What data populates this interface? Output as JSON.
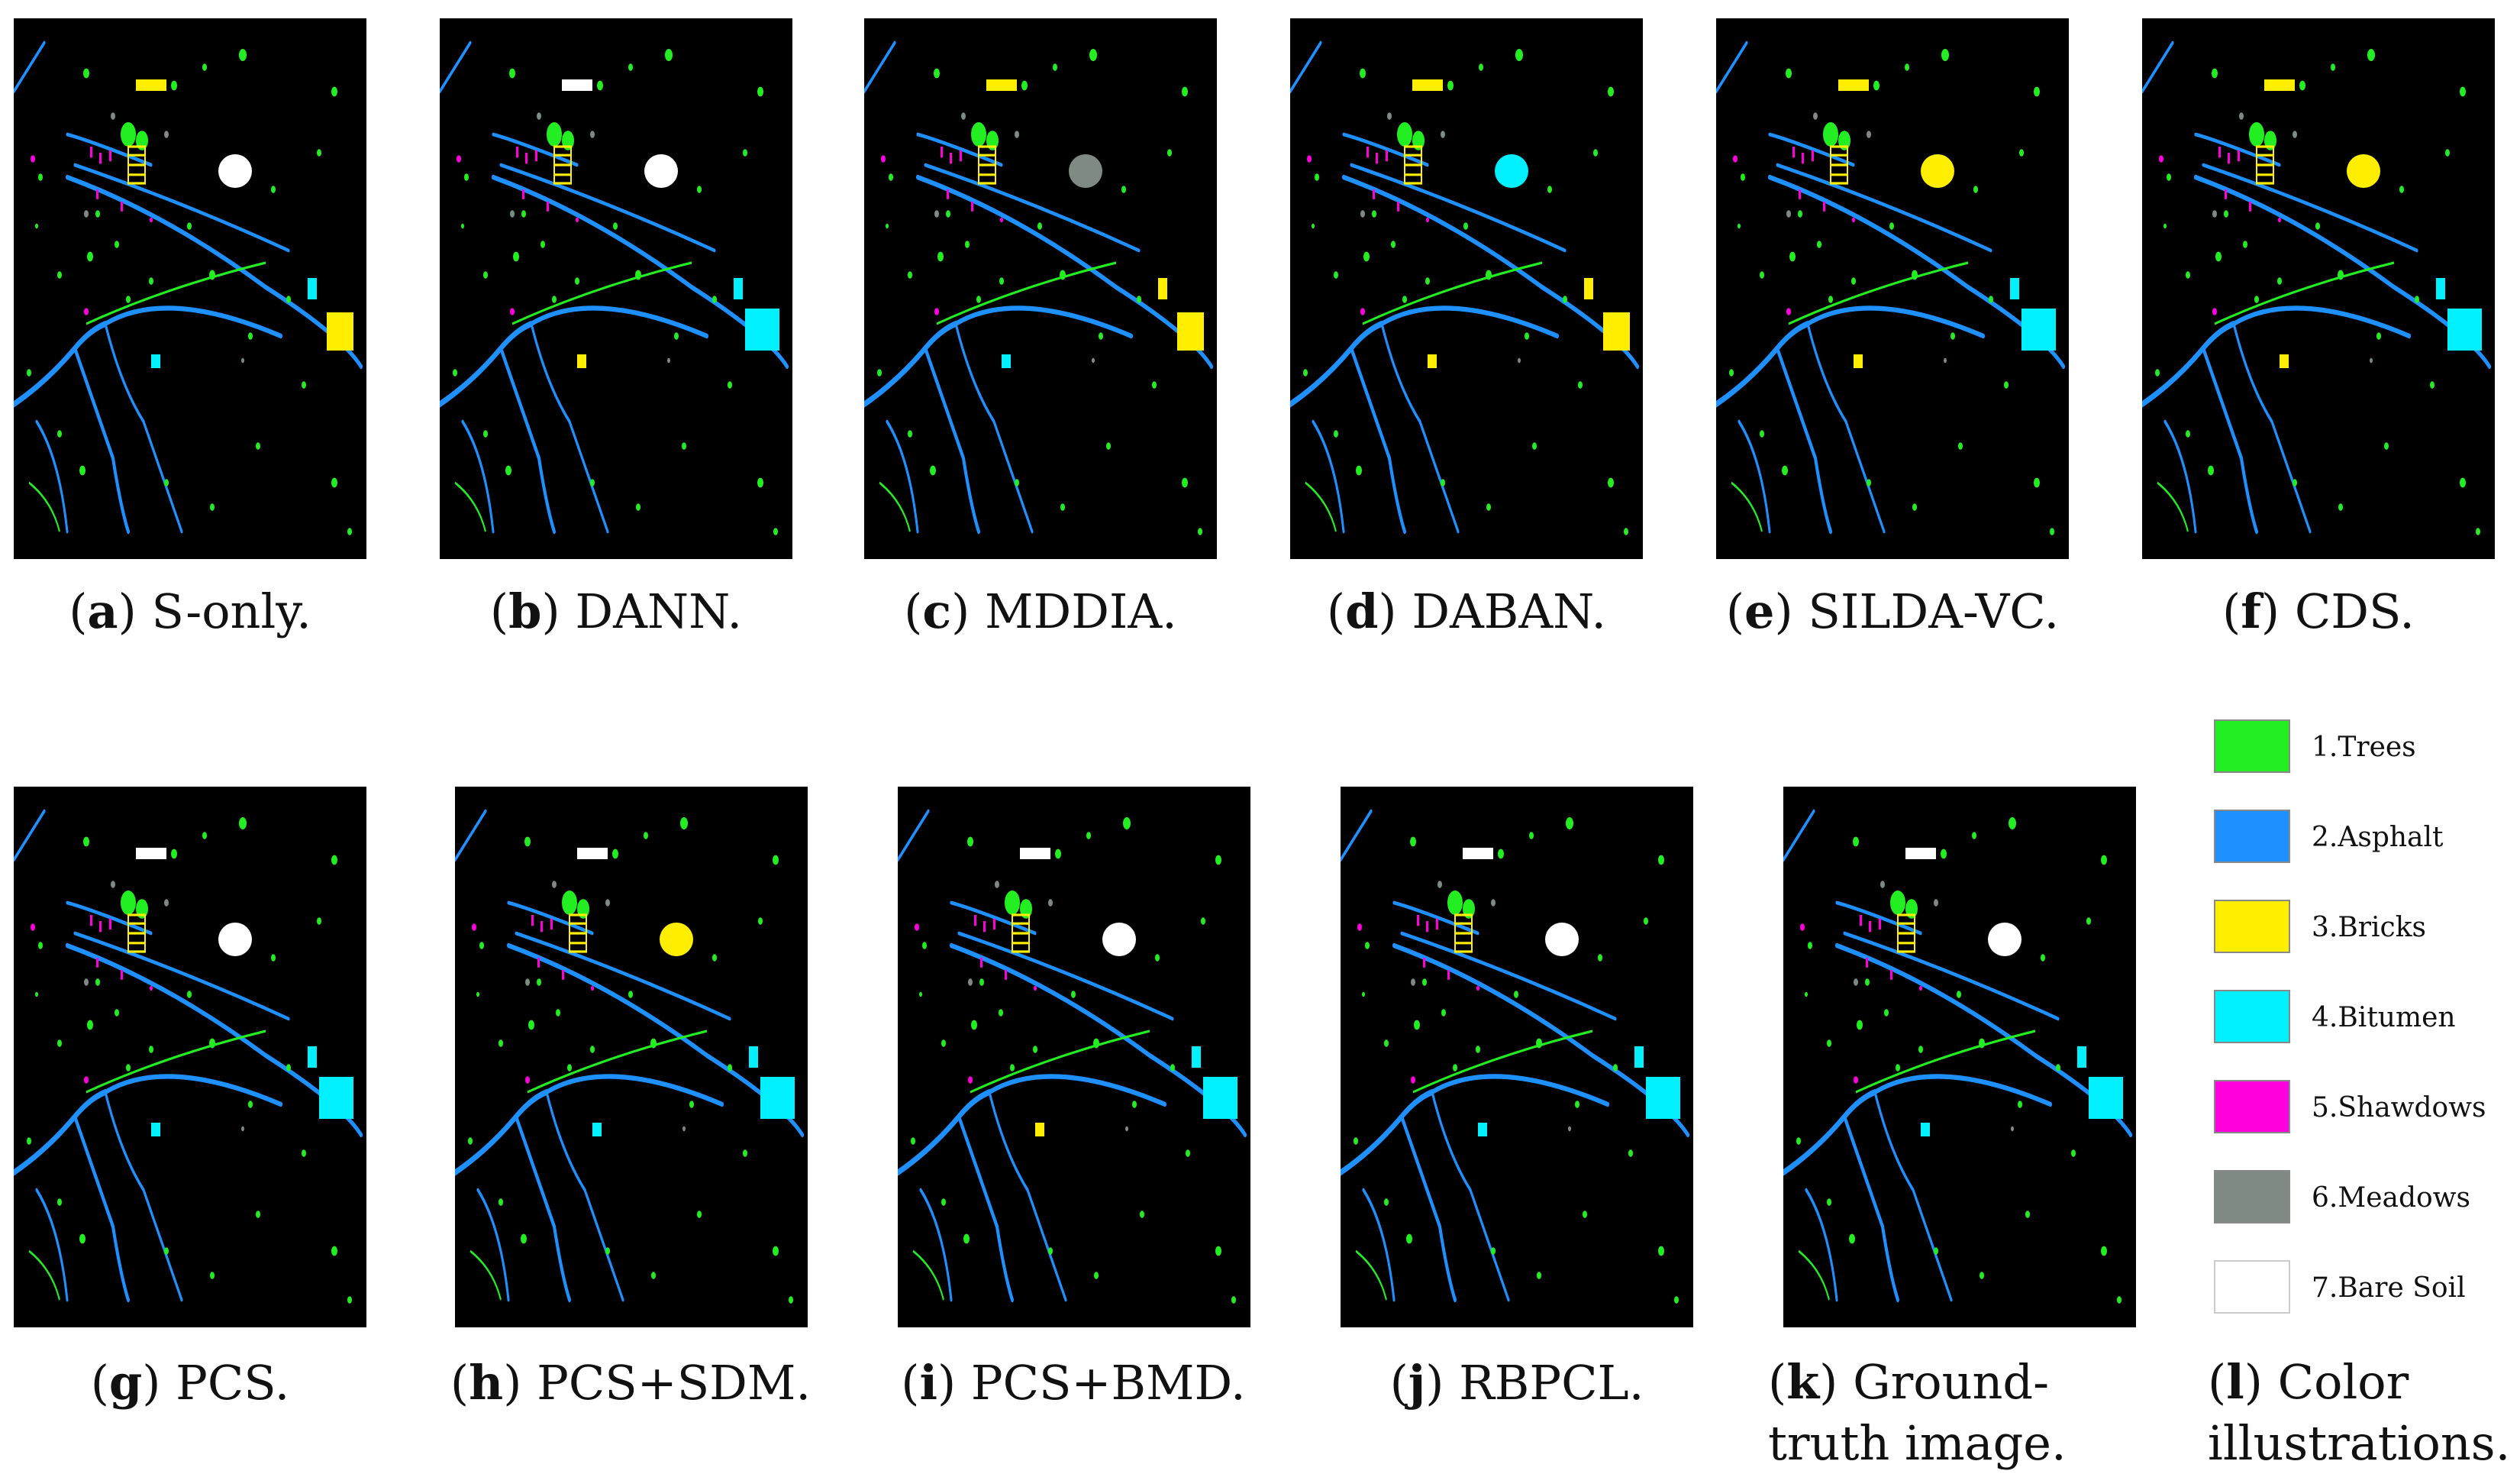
{
  "colors": {
    "trees": "#22ee22",
    "asphalt": "#1e90ff",
    "bricks": "#ffee00",
    "bitumen": "#00f0ff",
    "shadows": "#ff00dd",
    "meadows": "#808a85",
    "bare_soil": "#ffffff"
  },
  "panels": [
    {
      "letter": "a",
      "text": "S-only."
    },
    {
      "letter": "b",
      "text": "DANN."
    },
    {
      "letter": "c",
      "text": "MDDIA."
    },
    {
      "letter": "d",
      "text": "DABAN."
    },
    {
      "letter": "e",
      "text": "SILDA-VC."
    },
    {
      "letter": "f",
      "text": "CDS."
    },
    {
      "letter": "g",
      "text": "PCS."
    },
    {
      "letter": "h",
      "text": "PCS+SDM."
    },
    {
      "letter": "i",
      "text": "PCS+BMD."
    },
    {
      "letter": "j",
      "text": "RBPCL."
    },
    {
      "letter": "k",
      "text": "Ground-truth image."
    },
    {
      "letter": "l",
      "text": "Color illustrations."
    }
  ],
  "legend": [
    {
      "label": "1.Trees",
      "color": "#22ee22"
    },
    {
      "label": "2.Asphalt",
      "color": "#1e90ff"
    },
    {
      "label": "3.Bricks",
      "color": "#ffee00"
    },
    {
      "label": "4.Bitumen",
      "color": "#00f0ff"
    },
    {
      "label": "5.Shawdows",
      "color": "#ff00dd"
    },
    {
      "label": "6.Meadows",
      "color": "#808a85"
    },
    {
      "label": "7.Bare Soil",
      "color": "#ffffff"
    }
  ]
}
